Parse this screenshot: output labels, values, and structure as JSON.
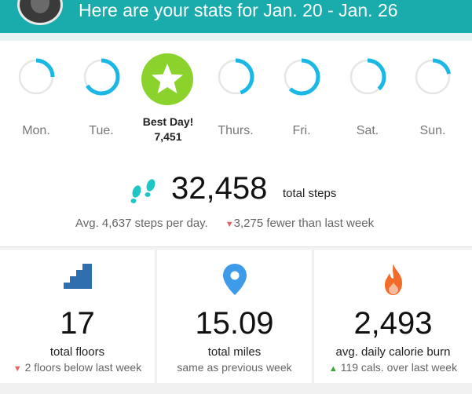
{
  "header": {
    "title": "Here are your stats for Jan. 20 - Jan. 26"
  },
  "week": {
    "days": [
      {
        "label": "Mon.",
        "progress": 0.25
      },
      {
        "label": "Tue.",
        "progress": 0.66
      },
      {
        "label": "Thurs.",
        "progress": 0.45
      },
      {
        "label": "Fri.",
        "progress": 0.62
      },
      {
        "label": "Sat.",
        "progress": 0.38
      },
      {
        "label": "Sun.",
        "progress": 0.22
      }
    ],
    "best_day": {
      "title": "Best Day!",
      "steps": "7,451"
    }
  },
  "steps": {
    "total": "32,458",
    "unit": "total steps",
    "average": "Avg. 4,637 steps per day.",
    "change": "3,275 fewer than last week"
  },
  "stats": [
    {
      "icon": "stairs-icon",
      "value": "17",
      "label": "total floors",
      "compare": "2 floors below last week",
      "trend": "down"
    },
    {
      "icon": "location-pin-icon",
      "value": "15.09",
      "label": "total miles",
      "compare": "same as previous week",
      "trend": "none"
    },
    {
      "icon": "flame-icon",
      "value": "2,493",
      "label": "avg. daily calorie burn",
      "compare": "119 cals. over last week",
      "trend": "up"
    }
  ],
  "colors": {
    "header": "#1aacac",
    "ring": "#1bb8e6",
    "ring_track": "#e6e6e6",
    "best_day": "#8bd22d",
    "down": "#e06666",
    "up": "#3aa53a",
    "stairs": "#2f6fb0",
    "pin": "#3d9be9",
    "flame": "#f26b2a"
  }
}
